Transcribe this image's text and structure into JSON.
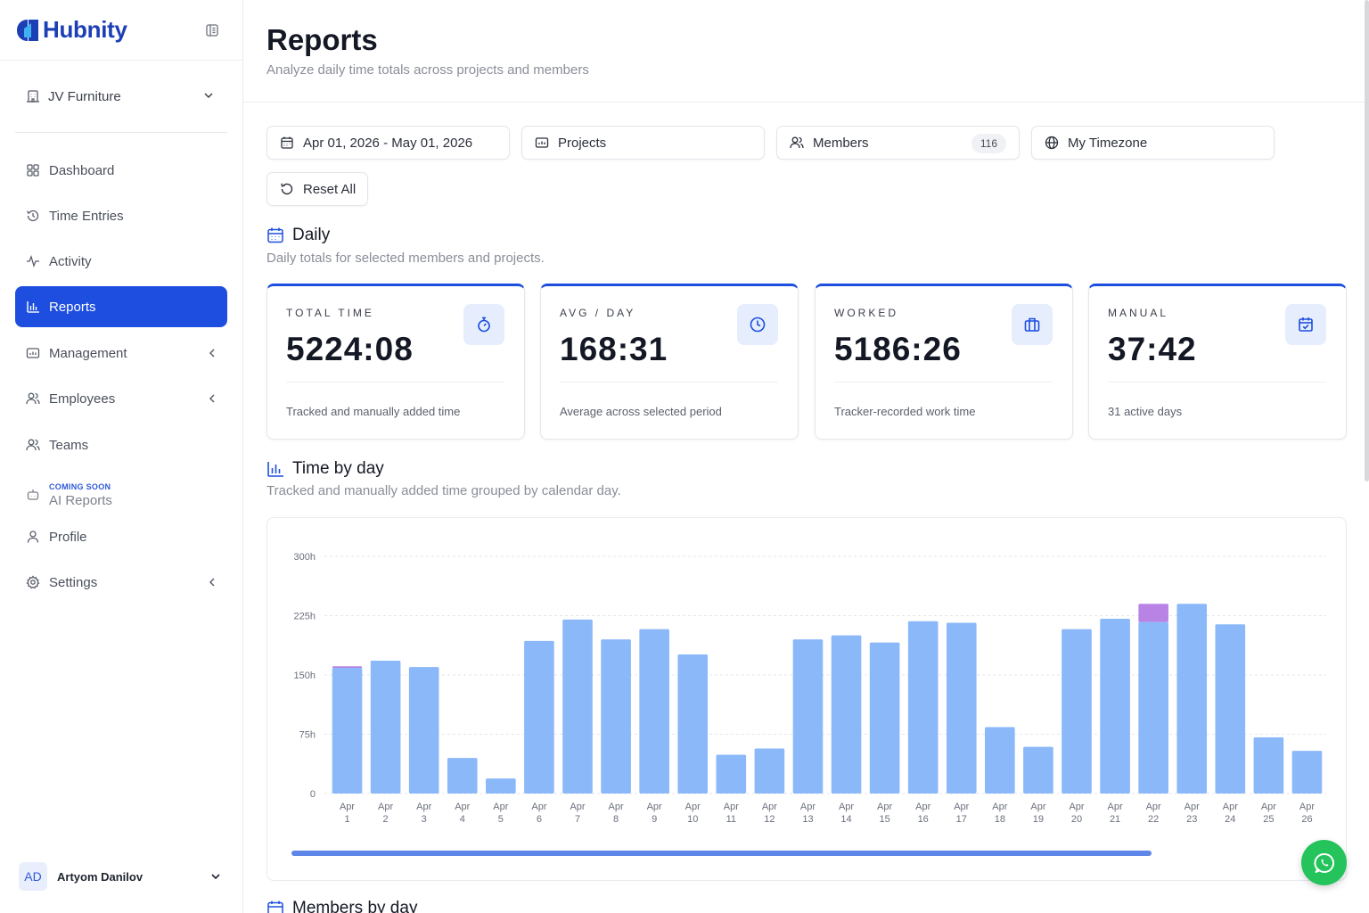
{
  "brand": {
    "name": "Hubnity"
  },
  "workspace": {
    "label": "JV Furniture"
  },
  "nav": {
    "dashboard": "Dashboard",
    "time_entries": "Time Entries",
    "activity": "Activity",
    "reports": "Reports",
    "management": "Management",
    "employees": "Employees",
    "teams": "Teams",
    "ai_reports_badge": "COMING SOON",
    "ai_reports": "AI Reports",
    "profile": "Profile",
    "settings": "Settings"
  },
  "user": {
    "initials": "AD",
    "name": "Artyom Danilov"
  },
  "page": {
    "title": "Reports",
    "subtitle": "Analyze daily time totals across projects and members"
  },
  "filters": {
    "date_range": "Apr 01, 2026 - May 01, 2026",
    "projects": "Projects",
    "members": "Members",
    "members_count": "116",
    "timezone": "My Timezone",
    "reset": "Reset All"
  },
  "daily": {
    "title": "Daily",
    "subtitle": "Daily totals for selected members and projects."
  },
  "stats": [
    {
      "label": "TOTAL TIME",
      "value": "5224:08",
      "desc": "Tracked and manually added time",
      "icon": "stopwatch-icon"
    },
    {
      "label": "AVG / DAY",
      "value": "168:31",
      "desc": "Average across selected period",
      "icon": "clock-icon"
    },
    {
      "label": "WORKED",
      "value": "5186:26",
      "desc": "Tracker-recorded work time",
      "icon": "briefcase-icon"
    },
    {
      "label": "MANUAL",
      "value": "37:42",
      "desc": "31 active days",
      "icon": "calendar-check-icon"
    }
  ],
  "time_by_day": {
    "title": "Time by day",
    "subtitle": "Tracked and manually added time grouped by calendar day."
  },
  "members_by_day": {
    "title": "Members by day"
  },
  "colors": {
    "accent": "#1d4ee0",
    "tracked_bar": "#8ab8f9",
    "manual_bar": "#b983e6",
    "whatsapp": "#25c35c"
  },
  "chart_data": {
    "type": "bar",
    "stacked": true,
    "categories": [
      "Apr 1",
      "Apr 2",
      "Apr 3",
      "Apr 4",
      "Apr 5",
      "Apr 6",
      "Apr 7",
      "Apr 8",
      "Apr 9",
      "Apr 10",
      "Apr 11",
      "Apr 12",
      "Apr 13",
      "Apr 14",
      "Apr 15",
      "Apr 16",
      "Apr 17",
      "Apr 18",
      "Apr 19",
      "Apr 20",
      "Apr 21",
      "Apr 22",
      "Apr 23",
      "Apr 24",
      "Apr 25",
      "Apr 26"
    ],
    "series": [
      {
        "values": [
          159,
          168,
          160,
          45,
          19,
          193,
          220,
          195,
          208,
          176,
          49,
          57,
          195,
          200,
          191,
          218,
          216,
          84,
          59,
          208,
          221,
          217,
          240,
          214,
          71,
          54
        ]
      },
      {
        "values": [
          2,
          0,
          0,
          0,
          0,
          0,
          0,
          0,
          0,
          0,
          0,
          0,
          0,
          0,
          0,
          0,
          0,
          0,
          0,
          0,
          0,
          23,
          0,
          0,
          0,
          0
        ]
      }
    ],
    "y_ticks": [
      "0",
      "75h",
      "150h",
      "225h",
      "300h"
    ],
    "ylim": [
      0,
      300
    ],
    "grid": true
  }
}
